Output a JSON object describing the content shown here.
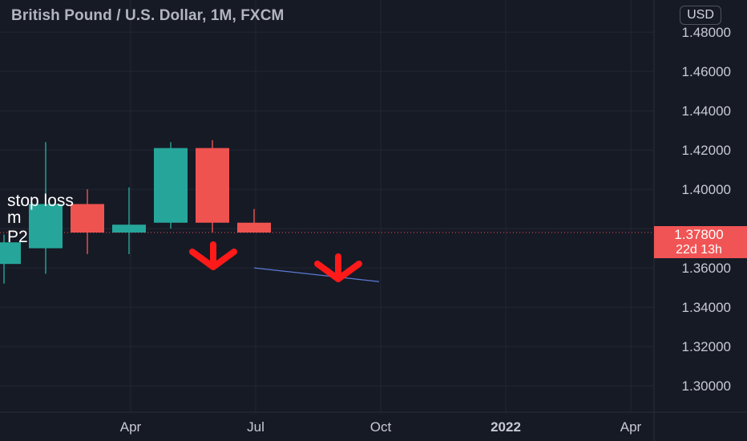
{
  "header": {
    "title": "British Pound / U.S. Dollar, 1M, FXCM",
    "currency": "USD"
  },
  "price_scale": {
    "labels": [
      "1.48000",
      "1.46000",
      "1.44000",
      "1.42000",
      "1.40000",
      "1.36000",
      "1.34000",
      "1.32000",
      "1.30000"
    ],
    "current_price": "1.37800",
    "countdown": "22d 13h"
  },
  "time_scale": {
    "labels": [
      {
        "text": "Apr",
        "bold": false
      },
      {
        "text": "Jul",
        "bold": false
      },
      {
        "text": "Oct",
        "bold": false
      },
      {
        "text": "2022",
        "bold": true
      },
      {
        "text": "Apr",
        "bold": false
      }
    ]
  },
  "chart_data": {
    "type": "candlestick",
    "colors": {
      "up": "#26a69a",
      "down": "#ef5350",
      "trendline": "#5b7bd5",
      "arrow": "#ff1a1a"
    },
    "candles": [
      {
        "period": "Jan 2021",
        "open": 1.362,
        "high": 1.377,
        "low": 1.352,
        "close": 1.373
      },
      {
        "period": "Feb 2021",
        "open": 1.37,
        "high": 1.424,
        "low": 1.357,
        "close": 1.3925
      },
      {
        "period": "Mar 2021",
        "open": 1.3925,
        "high": 1.4,
        "low": 1.367,
        "close": 1.378
      },
      {
        "period": "Apr 2021",
        "open": 1.378,
        "high": 1.401,
        "low": 1.367,
        "close": 1.382
      },
      {
        "period": "May 2021",
        "open": 1.383,
        "high": 1.424,
        "low": 1.38,
        "close": 1.421
      },
      {
        "period": "Jun 2021",
        "open": 1.421,
        "high": 1.425,
        "low": 1.378,
        "close": 1.383
      },
      {
        "period": "Jul 2021",
        "open": 1.383,
        "high": 1.39,
        "low": 1.378,
        "close": 1.378
      }
    ],
    "annotations": [
      {
        "text": "stop loss"
      },
      {
        "text": "m"
      },
      {
        "text": "P2"
      }
    ],
    "trendline": {
      "from": {
        "period": "Jul 2021",
        "price": 1.36
      },
      "to": {
        "period": "Oct 2021",
        "price": 1.353
      }
    },
    "arrows": [
      {
        "period": "Jul 2021",
        "direction": "down"
      },
      {
        "period": "Oct 2021",
        "direction": "down"
      }
    ]
  }
}
